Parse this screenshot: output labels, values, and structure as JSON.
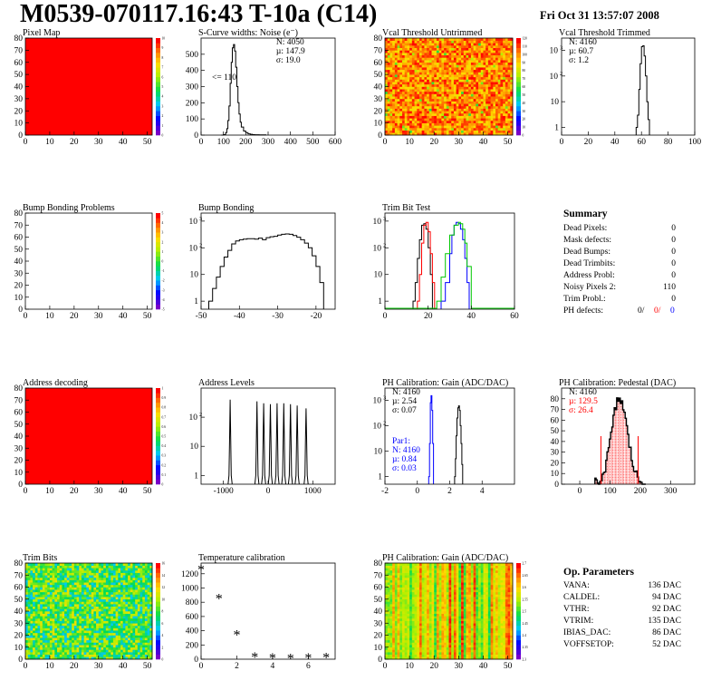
{
  "header": {
    "title": "M0539-070117.16:43 T-10a (C14)",
    "date": "Fri Oct 31 13:57:07 2008"
  },
  "colors": {
    "red": "#ff0000",
    "blue": "#0000ff",
    "green": "#00c800",
    "pink": "#ff8080",
    "black": "#000000"
  },
  "summary": {
    "title": "Summary",
    "rows": [
      {
        "label": "Dead Pixels:",
        "value": "0"
      },
      {
        "label": "Mask defects:",
        "value": "0"
      },
      {
        "label": "Dead Bumps:",
        "value": "0"
      },
      {
        "label": "Dead Trimbits:",
        "value": "0"
      },
      {
        "label": "Address Probl:",
        "value": "0"
      },
      {
        "label": "Noisy Pixels 2:",
        "value": "110"
      },
      {
        "label": "Trim Probl.:",
        "value": "0"
      }
    ],
    "ph_label": "PH defects:",
    "ph_values": [
      "0/",
      "0/",
      "0"
    ]
  },
  "op_params": {
    "title": "Op. Parameters",
    "rows": [
      {
        "label": "VANA:",
        "value": "136 DAC"
      },
      {
        "label": "CALDEL:",
        "value": "94 DAC"
      },
      {
        "label": "VTHR:",
        "value": "92 DAC"
      },
      {
        "label": "VTRIM:",
        "value": "135 DAC"
      },
      {
        "label": "IBIAS_DAC:",
        "value": "86 DAC"
      },
      {
        "label": "VOFFSETOP:",
        "value": "52 DAC"
      }
    ]
  },
  "chart_data": [
    {
      "id": "pixel-map",
      "type": "heatmap",
      "title": "Pixel Map",
      "xlim": [
        0,
        52
      ],
      "ylim": [
        0,
        80
      ],
      "xticks": [
        0,
        10,
        20,
        30,
        40,
        50
      ],
      "yticks": [
        0,
        10,
        20,
        30,
        40,
        50,
        60,
        70,
        80
      ],
      "fill": "uniform-max",
      "zmax": 10,
      "zticks": [
        0,
        1,
        2,
        3,
        4,
        5,
        6,
        7,
        8,
        9,
        10
      ]
    },
    {
      "id": "noise",
      "type": "line",
      "title": "S-Curve widths: Noise (e⁻)",
      "xlim": [
        0,
        600
      ],
      "ylim": [
        0,
        600
      ],
      "xticks": [
        0,
        100,
        200,
        300,
        400,
        500,
        600
      ],
      "yticks": [
        0,
        100,
        200,
        300,
        400,
        500
      ],
      "stats": [
        "N: 4050",
        "µ: 147.9",
        "σ: 19.0"
      ],
      "annotation": "<= 110",
      "series": [
        {
          "x": [
            90,
            100,
            110,
            115,
            120,
            125,
            130,
            135,
            140,
            145,
            150,
            155,
            160,
            165,
            170,
            175,
            180,
            190,
            200,
            210,
            220,
            230,
            240,
            260,
            290
          ],
          "y": [
            0,
            3,
            15,
            40,
            90,
            180,
            320,
            450,
            540,
            560,
            520,
            420,
            300,
            200,
            130,
            80,
            50,
            25,
            15,
            8,
            5,
            3,
            2,
            1,
            0
          ]
        }
      ]
    },
    {
      "id": "vcal-untrimmed",
      "type": "heatmap",
      "title": "Vcal Threshold Untrimmed",
      "xlim": [
        0,
        52
      ],
      "ylim": [
        0,
        80
      ],
      "xticks": [
        0,
        10,
        20,
        30,
        40,
        50
      ],
      "yticks": [
        0,
        10,
        20,
        30,
        40,
        50,
        60,
        70,
        80
      ],
      "fill": "noise-orange",
      "zmax": 120,
      "zticks": [
        0,
        10,
        20,
        30,
        40,
        50,
        60,
        70,
        80,
        90,
        100,
        110,
        120
      ]
    },
    {
      "id": "vcal-trimmed",
      "type": "line",
      "title": "Vcal Threshold Trimmed",
      "xlim": [
        0,
        100
      ],
      "ylim": [
        0.5,
        3000
      ],
      "log": true,
      "xticks": [
        0,
        20,
        40,
        60,
        80,
        100
      ],
      "yticks": [
        1,
        10,
        100,
        1000
      ],
      "stats": [
        "N: 4160",
        "µ: 60.7",
        "σ:  1.2"
      ],
      "series": [
        {
          "x": [
            56,
            57,
            58,
            59,
            60,
            61,
            62,
            63,
            64,
            65,
            66
          ],
          "y": [
            1,
            3,
            30,
            300,
            1400,
            1500,
            600,
            100,
            10,
            2,
            1
          ]
        }
      ]
    },
    {
      "id": "bump-map",
      "type": "heatmap",
      "title": "Bump Bonding Problems",
      "xlim": [
        0,
        52
      ],
      "ylim": [
        0,
        80
      ],
      "xticks": [
        0,
        10,
        20,
        30,
        40,
        50
      ],
      "yticks": [
        0,
        10,
        20,
        30,
        40,
        50,
        60,
        70,
        80
      ],
      "fill": "empty",
      "zmax": 5,
      "zticks": [
        -5,
        -4,
        -3,
        -2,
        -1,
        0,
        1,
        2,
        3,
        4,
        5
      ]
    },
    {
      "id": "bump-bonding",
      "type": "line",
      "title": "Bump Bonding",
      "xlim": [
        -50,
        -15
      ],
      "ylim": [
        0.5,
        2000
      ],
      "log": true,
      "xticks": [
        -50,
        -40,
        -30,
        -20
      ],
      "yticks": [
        1,
        10,
        100,
        1000
      ],
      "series": [
        {
          "x": [
            -48,
            -47,
            -46,
            -45,
            -44,
            -43,
            -42,
            -41,
            -40,
            -39,
            -38,
            -37,
            -36,
            -35,
            -34,
            -33,
            -32,
            -31,
            -30,
            -29,
            -28,
            -27,
            -26,
            -25,
            -24,
            -23,
            -22,
            -21,
            -20,
            -19,
            -18
          ],
          "y": [
            1,
            3,
            8,
            20,
            45,
            80,
            140,
            180,
            200,
            210,
            220,
            220,
            210,
            230,
            200,
            240,
            260,
            270,
            300,
            320,
            330,
            320,
            290,
            250,
            200,
            150,
            100,
            50,
            20,
            5,
            1
          ]
        }
      ]
    },
    {
      "id": "trim-bit-test",
      "type": "line",
      "title": "Trim Bit Test",
      "xlim": [
        0,
        60
      ],
      "ylim": [
        0.5,
        2000
      ],
      "log": true,
      "xticks": [
        0,
        20,
        40,
        60
      ],
      "yticks": [
        1,
        10,
        100,
        1000
      ],
      "series": [
        {
          "name": "",
          "color": "black",
          "x": [
            13,
            14,
            15,
            16,
            17,
            18,
            19,
            20,
            21,
            22
          ],
          "y": [
            1,
            5,
            40,
            200,
            700,
            800,
            500,
            100,
            10,
            1
          ]
        },
        {
          "name": "",
          "color": "red",
          "x": [
            15,
            16,
            17,
            18,
            19,
            20,
            21,
            22,
            23
          ],
          "y": [
            1,
            10,
            150,
            700,
            900,
            400,
            60,
            5,
            1
          ]
        },
        {
          "name": "",
          "color": "blue",
          "x": [
            26,
            28,
            30,
            31,
            32,
            33,
            34,
            35,
            36,
            37,
            38,
            39
          ],
          "y": [
            1,
            5,
            60,
            300,
            700,
            900,
            800,
            500,
            200,
            40,
            5,
            1
          ]
        },
        {
          "name": "",
          "color": "green",
          "x": [
            24,
            26,
            28,
            30,
            32,
            34,
            35,
            36,
            37,
            38,
            40
          ],
          "y": [
            1,
            8,
            60,
            300,
            700,
            900,
            800,
            500,
            150,
            20,
            1
          ]
        }
      ]
    },
    {
      "id": "address-decoding",
      "type": "heatmap",
      "title": "Address decoding",
      "xlim": [
        0,
        52
      ],
      "ylim": [
        0,
        80
      ],
      "xticks": [
        0,
        10,
        20,
        30,
        40,
        50
      ],
      "yticks": [
        0,
        10,
        20,
        30,
        40,
        50,
        60,
        70,
        80
      ],
      "fill": "uniform-max",
      "zmax": 1,
      "zticks": [
        0,
        0.1,
        0.2,
        0.3,
        0.4,
        0.5,
        0.6,
        0.7,
        0.8,
        0.9,
        1
      ]
    },
    {
      "id": "address-levels",
      "type": "line",
      "title": "Address Levels",
      "xlim": [
        -1500,
        1500
      ],
      "ylim": [
        0.5,
        1000
      ],
      "log": true,
      "xticks": [
        -1000,
        0,
        1000
      ],
      "yticks": [
        1,
        10,
        100
      ],
      "series": [
        {
          "peaks": [
            [
              -850,
              400
            ],
            [
              -250,
              350
            ],
            [
              -100,
              300
            ],
            [
              50,
              280
            ],
            [
              200,
              300
            ],
            [
              350,
              300
            ],
            [
              500,
              280
            ],
            [
              650,
              250
            ],
            [
              850,
              200
            ]
          ]
        }
      ]
    },
    {
      "id": "ph-gain",
      "type": "line",
      "title": "PH Calibration: Gain (ADC/DAC)",
      "xlim": [
        -2,
        6
      ],
      "ylim": [
        0.5,
        3000
      ],
      "log": true,
      "xticks": [
        -2,
        0,
        2,
        4
      ],
      "yticks": [
        1,
        10,
        100,
        1000
      ],
      "stats": [
        "N: 4160",
        "µ: 2.54",
        "σ: 0.07"
      ],
      "stats2": [
        "Par1:",
        "N: 4160",
        "µ: 0.84",
        "σ: 0.03"
      ],
      "series": [
        {
          "name": "",
          "color": "black",
          "x": [
            2.3,
            2.35,
            2.4,
            2.45,
            2.5,
            2.55,
            2.6,
            2.65,
            2.7,
            2.75,
            2.8
          ],
          "y": [
            1,
            5,
            40,
            200,
            500,
            600,
            400,
            100,
            20,
            3,
            1
          ]
        },
        {
          "name": "Par1:",
          "color": "blue",
          "x": [
            0.7,
            0.75,
            0.8,
            0.85,
            0.9,
            0.95,
            1.0
          ],
          "y": [
            1,
            20,
            800,
            1500,
            400,
            20,
            1
          ]
        }
      ]
    },
    {
      "id": "ph-pedestal",
      "type": "bar",
      "title": "PH Calibration: Pedestal (DAC)",
      "xlim": [
        -60,
        380
      ],
      "ylim": [
        0,
        90
      ],
      "xticks": [
        0,
        100,
        200,
        300
      ],
      "yticks": [
        0,
        10,
        20,
        30,
        40,
        50,
        60,
        70,
        80
      ],
      "stats": [
        "N: 4160",
        "µ: 129.5",
        "σ: 26.4"
      ],
      "fit_lines": [
        70,
        193
      ],
      "series": [
        {
          "mean": 129.5,
          "sigma": 26.4,
          "peak": 80
        }
      ]
    },
    {
      "id": "trim-bits",
      "type": "heatmap",
      "title": "Trim Bits",
      "xlim": [
        0,
        52
      ],
      "ylim": [
        0,
        80
      ],
      "xticks": [
        0,
        10,
        20,
        30,
        40,
        50
      ],
      "yticks": [
        0,
        10,
        20,
        30,
        40,
        50,
        60,
        70,
        80
      ],
      "fill": "noise-green",
      "zmax": 16,
      "zticks": [
        0,
        2,
        4,
        6,
        8,
        10,
        12,
        14,
        16
      ]
    },
    {
      "id": "temperature",
      "type": "scatter",
      "title": "Temperature calibration",
      "xlim": [
        0,
        7.5
      ],
      "ylim": [
        0,
        1350
      ],
      "xticks": [
        0,
        2,
        4,
        6
      ],
      "yticks": [
        0,
        200,
        400,
        600,
        800,
        1000,
        1200
      ],
      "x": [
        0,
        1,
        2,
        3,
        4,
        5,
        6,
        7
      ],
      "y": [
        1270,
        860,
        350,
        40,
        25,
        20,
        25,
        30
      ]
    },
    {
      "id": "ph-gain-map",
      "type": "heatmap",
      "title": "PH Calibration: Gain (ADC/DAC)",
      "xlim": [
        0,
        52
      ],
      "ylim": [
        0,
        80
      ],
      "xticks": [
        0,
        10,
        20,
        30,
        40,
        50
      ],
      "yticks": [
        0,
        10,
        20,
        30,
        40,
        50,
        60,
        70,
        80
      ],
      "fill": "stripes",
      "zmin": 2.3,
      "zmax": 2.7,
      "zticks": [
        2.3,
        2.35,
        2.4,
        2.45,
        2.5,
        2.55,
        2.6,
        2.65,
        2.7
      ]
    }
  ]
}
